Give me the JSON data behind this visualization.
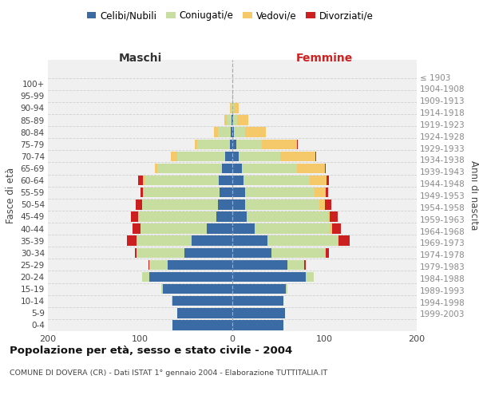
{
  "age_groups": [
    "0-4",
    "5-9",
    "10-14",
    "15-19",
    "20-24",
    "25-29",
    "30-34",
    "35-39",
    "40-44",
    "45-49",
    "50-54",
    "55-59",
    "60-64",
    "65-69",
    "70-74",
    "75-79",
    "80-84",
    "85-89",
    "90-94",
    "95-99",
    "100+"
  ],
  "birth_years": [
    "1999-2003",
    "1994-1998",
    "1989-1993",
    "1984-1988",
    "1979-1983",
    "1974-1978",
    "1969-1973",
    "1964-1968",
    "1959-1963",
    "1954-1958",
    "1949-1953",
    "1944-1948",
    "1939-1943",
    "1934-1938",
    "1929-1933",
    "1924-1928",
    "1919-1923",
    "1914-1918",
    "1909-1913",
    "1904-1908",
    "≤ 1903"
  ],
  "maschi": {
    "celibi": [
      65,
      60,
      65,
      75,
      90,
      70,
      52,
      44,
      28,
      17,
      16,
      14,
      15,
      11,
      8,
      3,
      2,
      1,
      0,
      0,
      0
    ],
    "coniugati": [
      0,
      0,
      1,
      2,
      8,
      20,
      52,
      60,
      72,
      85,
      82,
      82,
      80,
      70,
      52,
      35,
      14,
      5,
      2,
      0,
      0
    ],
    "vedovi": [
      0,
      0,
      0,
      0,
      0,
      0,
      0,
      0,
      0,
      0,
      0,
      1,
      2,
      3,
      7,
      3,
      4,
      3,
      1,
      0,
      0
    ],
    "divorziati": [
      0,
      0,
      0,
      0,
      0,
      1,
      2,
      10,
      8,
      8,
      7,
      3,
      5,
      0,
      0,
      0,
      0,
      0,
      0,
      0,
      0
    ]
  },
  "femmine": {
    "nubili": [
      55,
      57,
      55,
      58,
      80,
      60,
      42,
      38,
      24,
      16,
      14,
      14,
      12,
      10,
      7,
      4,
      2,
      1,
      0,
      0,
      0
    ],
    "coniugate": [
      0,
      0,
      0,
      2,
      8,
      18,
      58,
      76,
      82,
      88,
      80,
      75,
      72,
      60,
      45,
      28,
      12,
      4,
      2,
      0,
      0
    ],
    "vedove": [
      0,
      0,
      0,
      0,
      0,
      0,
      1,
      1,
      2,
      2,
      6,
      12,
      18,
      30,
      38,
      38,
      22,
      12,
      5,
      1,
      0
    ],
    "divorziate": [
      0,
      0,
      0,
      0,
      0,
      2,
      4,
      12,
      10,
      8,
      7,
      3,
      3,
      1,
      1,
      1,
      0,
      0,
      0,
      0,
      0
    ]
  },
  "colors": {
    "celibi": "#3a6ba5",
    "coniugati": "#c8dda0",
    "vedovi": "#f5c96a",
    "divorziati": "#cc2020"
  },
  "xlim": 200,
  "title": "Popolazione per età, sesso e stato civile - 2004",
  "subtitle": "COMUNE DI DOVERA (CR) - Dati ISTAT 1° gennaio 2004 - Elaborazione TUTTITALIA.IT",
  "ylabel_left": "Fasce di età",
  "ylabel_right": "Anni di nascita",
  "xlabel_left": "Maschi",
  "xlabel_right": "Femmine",
  "legend_labels": [
    "Celibi/Nubili",
    "Coniugati/e",
    "Vedovi/e",
    "Divorziati/e"
  ],
  "bg_color": "#f0f0f0"
}
